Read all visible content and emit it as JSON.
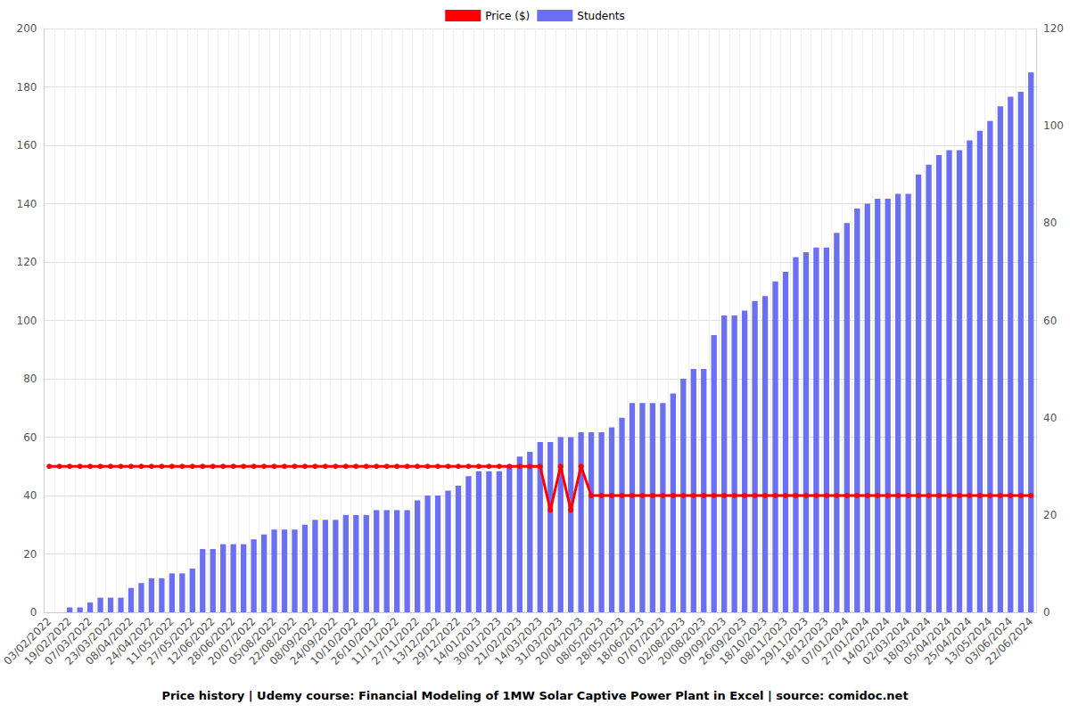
{
  "chart_data": {
    "type": "bar",
    "title": "Price history | Udemy course: Financial Modeling of 1MW Solar Captive Power Plant in Excel | source: comidoc.net",
    "categories": [
      "03/02/2022",
      null,
      "19/02/2022",
      null,
      "07/03/2022",
      null,
      "23/03/2022",
      null,
      "08/04/2022",
      null,
      "24/04/2022",
      null,
      "11/05/2022",
      null,
      "27/05/2022",
      null,
      "12/06/2022",
      null,
      "28/06/2022",
      null,
      "20/07/2022",
      null,
      "05/08/2022",
      null,
      "22/08/2022",
      null,
      "08/09/2022",
      null,
      "24/09/2022",
      null,
      "10/10/2022",
      null,
      "26/10/2022",
      null,
      "11/11/2022",
      null,
      "27/11/2022",
      null,
      "13/12/2022",
      null,
      "29/12/2022",
      null,
      "14/01/2023",
      null,
      "30/01/2023",
      null,
      "21/02/2023",
      null,
      "14/03/2023",
      null,
      "31/03/2023",
      null,
      "20/04/2023",
      null,
      "08/05/2023",
      null,
      "28/05/2023",
      null,
      "18/06/2023",
      null,
      "07/07/2023",
      null,
      "02/08/2023",
      null,
      "20/08/2023",
      null,
      "09/09/2023",
      null,
      "26/09/2023",
      null,
      "18/10/2023",
      null,
      "08/11/2023",
      null,
      "29/11/2023",
      null,
      "18/12/2023",
      null,
      "07/01/2024",
      null,
      "27/01/2024",
      null,
      "14/02/2024",
      null,
      "02/03/2024",
      null,
      "18/03/2024",
      null,
      "05/04/2024",
      null,
      "25/04/2024",
      null,
      "13/05/2024",
      null,
      "03/06/2024",
      null,
      "22/06/2024"
    ],
    "series": [
      {
        "name": "Price ($)",
        "type": "line",
        "color": "#ff0000",
        "marker": "circle",
        "values": [
          50,
          50,
          50,
          50,
          50,
          50,
          50,
          50,
          50,
          50,
          50,
          50,
          50,
          50,
          50,
          50,
          50,
          50,
          50,
          50,
          50,
          50,
          50,
          50,
          50,
          50,
          50,
          50,
          50,
          50,
          50,
          50,
          50,
          50,
          50,
          50,
          50,
          50,
          50,
          50,
          50,
          50,
          50,
          50,
          50,
          50,
          50,
          50,
          50,
          35,
          50,
          35,
          50,
          40,
          40,
          40,
          40,
          40,
          40,
          40,
          40,
          40,
          40,
          40,
          40,
          40,
          40,
          40,
          40,
          40,
          40,
          40,
          40,
          40,
          40,
          40,
          40,
          40,
          40,
          40,
          40,
          40,
          40,
          40,
          40,
          40,
          40,
          40,
          40,
          40,
          40,
          40,
          40,
          40,
          40,
          40,
          40
        ]
      },
      {
        "name": "Students",
        "type": "bar",
        "color": "#6b6ff2",
        "axis": "y2",
        "values": [
          0,
          0,
          1,
          1,
          2,
          3,
          3,
          3,
          5,
          6,
          7,
          7,
          8,
          8,
          9,
          13,
          13,
          14,
          14,
          14,
          15,
          16,
          17,
          17,
          17,
          18,
          19,
          19,
          19,
          20,
          20,
          20,
          21,
          21,
          21,
          21,
          23,
          24,
          24,
          25,
          26,
          28,
          29,
          29,
          29,
          30,
          32,
          33,
          35,
          35,
          36,
          36,
          37,
          37,
          37,
          38,
          40,
          43,
          43,
          43,
          43,
          45,
          48,
          50,
          50,
          57,
          61,
          61,
          62,
          64,
          65,
          68,
          70,
          73,
          74,
          75,
          75,
          78,
          80,
          83,
          84,
          85,
          85,
          86,
          86,
          90,
          92,
          94,
          95,
          95,
          97,
          99,
          101,
          104,
          106,
          107,
          111
        ]
      }
    ],
    "ylim": [
      0,
      200
    ],
    "yticks": [
      0,
      20,
      40,
      60,
      80,
      100,
      120,
      140,
      160,
      180,
      200
    ],
    "y2lim": [
      0,
      120
    ],
    "y2ticks": [
      0,
      20,
      40,
      60,
      80,
      100,
      120
    ],
    "grid": true,
    "legend": "top"
  }
}
